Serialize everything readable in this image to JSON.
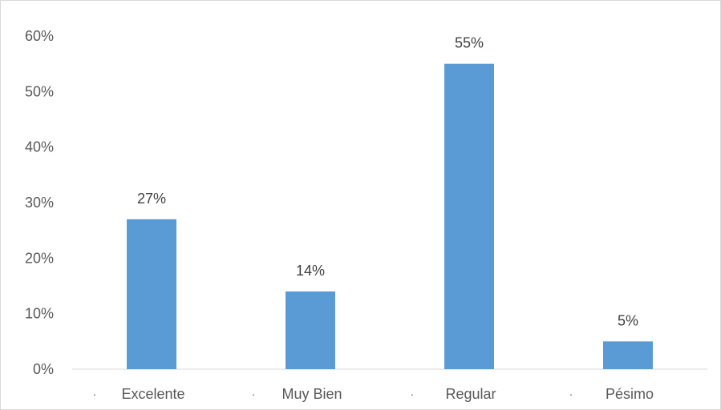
{
  "chart_data": {
    "type": "bar",
    "categories": [
      "Excelente",
      "Muy Bien",
      "Regular",
      "Pésimo"
    ],
    "category_bullet": "·",
    "values": [
      27,
      14,
      55,
      5
    ],
    "data_labels": [
      "27%",
      "14%",
      "55%",
      "5%"
    ],
    "ylim": [
      0,
      60
    ],
    "y_ticks": [
      0,
      10,
      20,
      30,
      40,
      50,
      60
    ],
    "y_tick_labels": [
      "0%",
      "10%",
      "20%",
      "30%",
      "40%",
      "50%",
      "60%"
    ],
    "grid": false,
    "legend": "none",
    "colors": {
      "bar": "#5B9BD5",
      "axis": "#d9d9d9",
      "text": "#595959"
    }
  }
}
